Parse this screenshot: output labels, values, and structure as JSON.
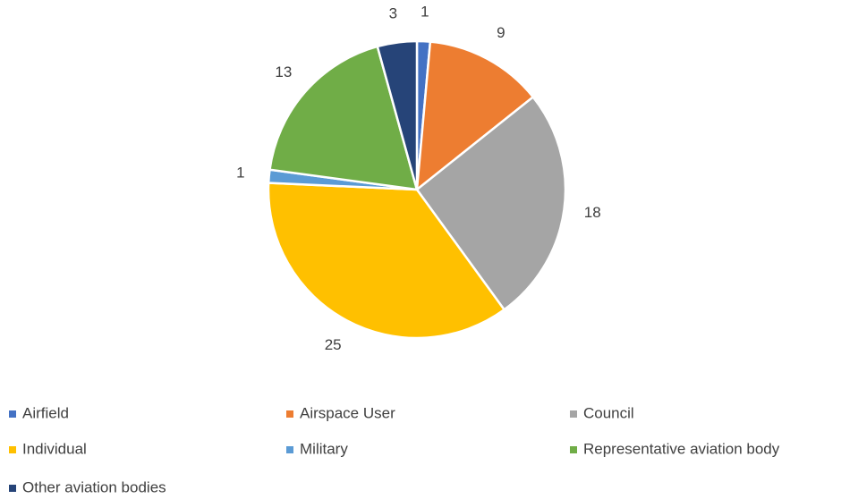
{
  "chart_data": {
    "type": "pie",
    "categories": [
      "Airfield",
      "Airspace User",
      "Council",
      "Individual",
      "Military",
      "Representative aviation body",
      "Other aviation bodies"
    ],
    "values": [
      1,
      9,
      18,
      25,
      1,
      13,
      3
    ],
    "colors": [
      "#4472c4",
      "#ed7d31",
      "#a5a5a5",
      "#ffc000",
      "#5b9bd5",
      "#70ad47",
      "#264478"
    ],
    "legend": "bottom"
  }
}
